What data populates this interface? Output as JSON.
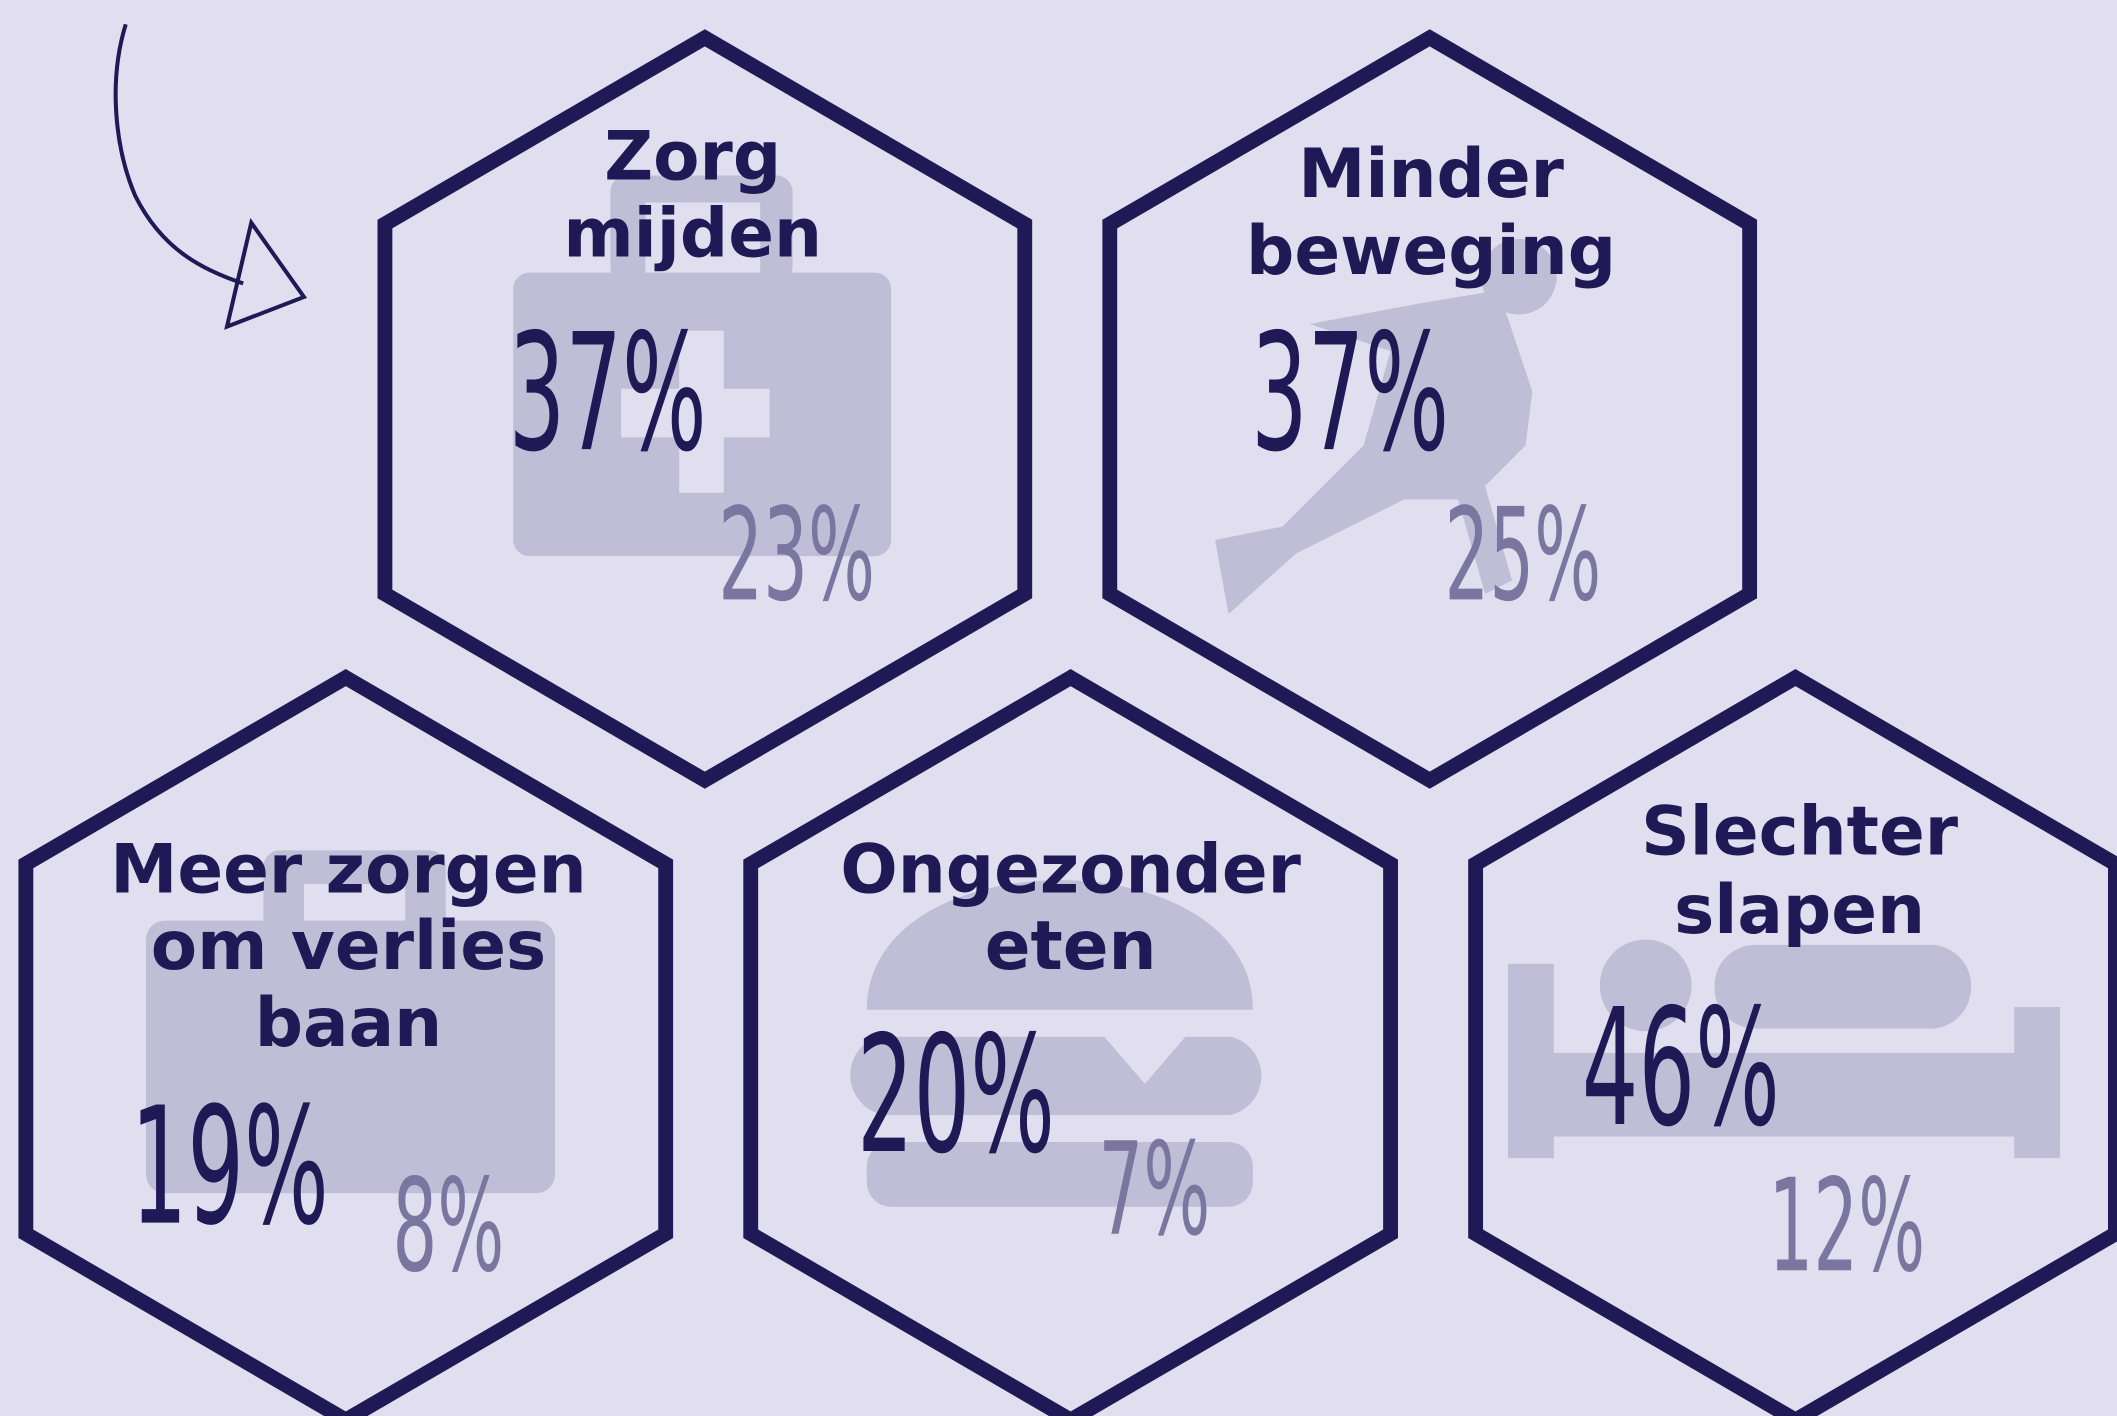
{
  "items": [
    {
      "title": [
        "Zorg",
        "mijden"
      ],
      "primary": "37%",
      "secondary": "23%"
    },
    {
      "title": [
        "Minder",
        "beweging"
      ],
      "primary": "37%",
      "secondary": "25%"
    },
    {
      "title": [
        "Meer zorgen",
        "om verlies",
        "baan"
      ],
      "primary": "19%",
      "secondary": "8%"
    },
    {
      "title": [
        "Ongezonder",
        "eten"
      ],
      "primary": "20%",
      "secondary": "7%"
    },
    {
      "title": [
        "Slechter",
        "slapen"
      ],
      "primary": "46%",
      "secondary": "12%"
    }
  ]
}
